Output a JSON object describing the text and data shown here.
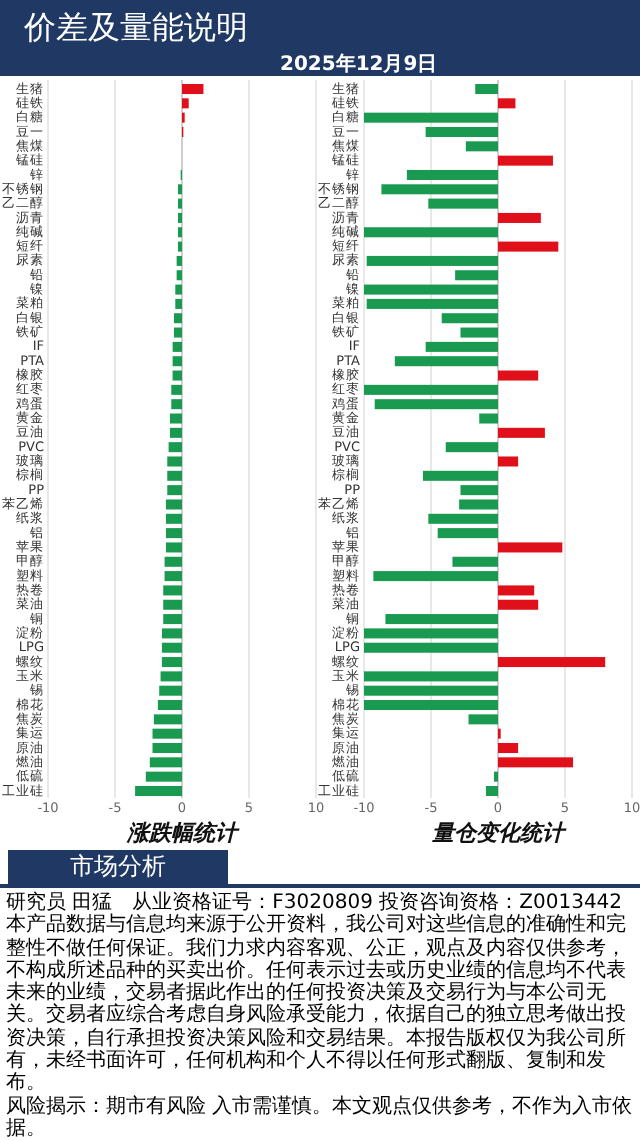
{
  "chart_data": [
    {
      "type": "bar",
      "orientation": "horizontal",
      "title": "涨跌幅统计",
      "categories": [
        "生猪",
        "硅铁",
        "白糖",
        "豆一",
        "焦煤",
        "锰硅",
        "锌",
        "不锈钢",
        "乙二醇",
        "沥青",
        "纯碱",
        "短纤",
        "尿素",
        "铅",
        "镍",
        "菜粕",
        "白银",
        "铁矿",
        "IF",
        "PTA",
        "橡胶",
        "红枣",
        "鸡蛋",
        "黄金",
        "豆油",
        "PVC",
        "玻璃",
        "棕榈",
        "PP",
        "苯乙烯",
        "纸浆",
        "铝",
        "苹果",
        "甲醇",
        "塑料",
        "热卷",
        "菜油",
        "铜",
        "淀粉",
        "LPG",
        "螺纹",
        "玉米",
        "锡",
        "棉花",
        "焦炭",
        "集运",
        "原油",
        "燃油",
        "低硫",
        "工业硅"
      ],
      "values": [
        1.6,
        0.5,
        0.2,
        0.1,
        0,
        0,
        -0.1,
        -0.3,
        -0.3,
        -0.3,
        -0.3,
        -0.3,
        -0.4,
        -0.4,
        -0.5,
        -0.5,
        -0.6,
        -0.6,
        -0.7,
        -0.7,
        -0.7,
        -0.8,
        -0.8,
        -0.9,
        -0.9,
        -1.0,
        -1.1,
        -1.1,
        -1.1,
        -1.2,
        -1.2,
        -1.2,
        -1.2,
        -1.3,
        -1.3,
        -1.4,
        -1.4,
        -1.4,
        -1.5,
        -1.5,
        -1.5,
        -1.6,
        -1.7,
        -1.8,
        -2.1,
        -2.2,
        -2.2,
        -2.4,
        -2.7,
        -3.5
      ],
      "colors": [
        "#e0101a",
        "#e0101a",
        "#e0101a",
        "#e0101a",
        "#1a9a50",
        "#1a9a50",
        "#1a9a50",
        "#1a9a50",
        "#1a9a50",
        "#1a9a50",
        "#1a9a50",
        "#1a9a50",
        "#1a9a50",
        "#1a9a50",
        "#1a9a50",
        "#1a9a50",
        "#1a9a50",
        "#1a9a50",
        "#1a9a50",
        "#1a9a50",
        "#1a9a50",
        "#1a9a50",
        "#1a9a50",
        "#1a9a50",
        "#1a9a50",
        "#1a9a50",
        "#1a9a50",
        "#1a9a50",
        "#1a9a50",
        "#1a9a50",
        "#1a9a50",
        "#1a9a50",
        "#1a9a50",
        "#1a9a50",
        "#1a9a50",
        "#1a9a50",
        "#1a9a50",
        "#1a9a50",
        "#1a9a50",
        "#1a9a50",
        "#1a9a50",
        "#1a9a50",
        "#1a9a50",
        "#1a9a50",
        "#1a9a50",
        "#1a9a50",
        "#1a9a50",
        "#1a9a50",
        "#1a9a50",
        "#1a9a50"
      ],
      "xlim": [
        -10,
        10
      ],
      "xticks": [
        -10,
        -5,
        0,
        5,
        10
      ],
      "grid": "x"
    },
    {
      "type": "bar",
      "orientation": "horizontal",
      "title": "量仓变化统计",
      "categories": [
        "生猪",
        "硅铁",
        "白糖",
        "豆一",
        "焦煤",
        "锰硅",
        "锌",
        "不锈钢",
        "乙二醇",
        "沥青",
        "纯碱",
        "短纤",
        "尿素",
        "铅",
        "镍",
        "菜粕",
        "白银",
        "铁矿",
        "IF",
        "PTA",
        "橡胶",
        "红枣",
        "鸡蛋",
        "黄金",
        "豆油",
        "PVC",
        "玻璃",
        "棕榈",
        "PP",
        "苯乙烯",
        "纸浆",
        "铝",
        "苹果",
        "甲醇",
        "塑料",
        "热卷",
        "菜油",
        "铜",
        "淀粉",
        "LPG",
        "螺纹",
        "玉米",
        "锡",
        "棉花",
        "焦炭",
        "集运",
        "原油",
        "燃油",
        "低硫",
        "工业硅"
      ],
      "values": [
        -1.7,
        1.3,
        -10,
        -5.4,
        -2.4,
        4.1,
        -6.8,
        -8.7,
        -5.2,
        3.2,
        -10,
        4.5,
        -9.8,
        -3.2,
        -10,
        -9.8,
        -4.2,
        -2.8,
        -5.4,
        -7.7,
        3.0,
        -10,
        -9.2,
        -1.4,
        3.5,
        -3.9,
        1.5,
        -5.6,
        -2.8,
        -2.9,
        -5.2,
        -4.5,
        4.8,
        -3.4,
        -9.3,
        2.7,
        3.0,
        -8.4,
        -10,
        -10,
        8.0,
        -10,
        -10,
        -10,
        -2.2,
        0.2,
        1.5,
        5.6,
        -0.3,
        -0.9
      ],
      "colors": [
        "#1a9a50",
        "#e0101a",
        "#1a9a50",
        "#1a9a50",
        "#1a9a50",
        "#e0101a",
        "#1a9a50",
        "#1a9a50",
        "#1a9a50",
        "#e0101a",
        "#1a9a50",
        "#e0101a",
        "#1a9a50",
        "#1a9a50",
        "#1a9a50",
        "#1a9a50",
        "#1a9a50",
        "#1a9a50",
        "#1a9a50",
        "#1a9a50",
        "#e0101a",
        "#1a9a50",
        "#1a9a50",
        "#1a9a50",
        "#e0101a",
        "#1a9a50",
        "#e0101a",
        "#1a9a50",
        "#1a9a50",
        "#1a9a50",
        "#1a9a50",
        "#1a9a50",
        "#e0101a",
        "#1a9a50",
        "#1a9a50",
        "#e0101a",
        "#e0101a",
        "#1a9a50",
        "#1a9a50",
        "#1a9a50",
        "#e0101a",
        "#1a9a50",
        "#1a9a50",
        "#1a9a50",
        "#1a9a50",
        "#e0101a",
        "#e0101a",
        "#e0101a",
        "#1a9a50",
        "#1a9a50"
      ],
      "xlim": [
        -10,
        10
      ],
      "xticks": [
        -10,
        -5,
        0,
        5,
        10
      ],
      "grid": "x"
    },
    {
      "type": "other",
      "title": "价差及量能说明",
      "subtitle": "2025年12月9日",
      "annotations": [
        "市场分析",
        "研究员 田猛　从业资格证号：F3020809 投资咨询资格：Z0013442",
        "本产品数据与信息均来源于公开资料，我公司对这些信息的准确性和完整性不做任何保证。我们力求内容客观、公正，观点及内容仅供参考，不构成所述品种的买卖出价。任何表示过去或历史业绩的信息均不代表未来的业绩，交易者据此作出的任何投资决策及交易行为与本公司无关。交易者应综合考虑自身风险承受能力，依据自己的独立思考做出投资决策，自行承担投资决策风险和交易结果。本报告版权仅为我公司所有，未经书面许可，任何机构和个人不得以任何形式翻版、复制和发布。",
        "风险揭示：期市有风险 入市需谨慎。本文观点仅供参考，不作为入市依据。"
      ]
    }
  ]
}
